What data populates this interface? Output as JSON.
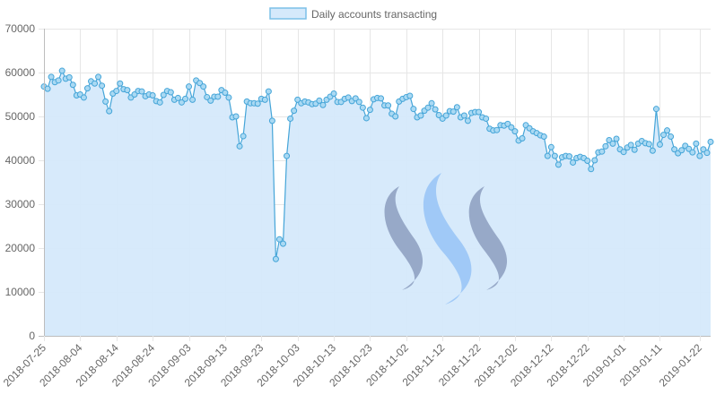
{
  "chart_data": {
    "type": "line",
    "x_start": "2018-07-25",
    "series": [
      {
        "name": "Daily accounts transacting",
        "values": [
          56800,
          56300,
          59000,
          57800,
          58200,
          60400,
          58600,
          58900,
          57200,
          54800,
          55000,
          54300,
          56400,
          58000,
          57500,
          59000,
          57000,
          53400,
          51200,
          55200,
          55800,
          57500,
          56200,
          56000,
          54300,
          55000,
          55800,
          55700,
          54600,
          55000,
          54800,
          53500,
          53200,
          54900,
          55800,
          55500,
          53800,
          54200,
          53200,
          54000,
          56800,
          53800,
          58200,
          57600,
          56800,
          54400,
          53600,
          54500,
          54500,
          56000,
          55400,
          54300,
          49800,
          50000,
          43200,
          45500,
          53400,
          53000,
          53000,
          52900,
          54000,
          53800,
          55700,
          49000,
          17500,
          22000,
          21000,
          41000,
          49500,
          51300,
          53800,
          53000,
          53400,
          53200,
          52800,
          52900,
          53600,
          52600,
          53800,
          54500,
          55200,
          53300,
          53300,
          54000,
          54300,
          53500,
          54100,
          53300,
          52000,
          49600,
          51500,
          53900,
          54200,
          54100,
          52500,
          52500,
          50600,
          50000,
          53400,
          54000,
          54400,
          54700,
          51700,
          49800,
          50200,
          51300,
          52000,
          53000,
          51600,
          50300,
          49500,
          50200,
          51200,
          51100,
          52100,
          49800,
          50200,
          49000,
          50800,
          51000,
          51000,
          49800,
          49500,
          47200,
          46800,
          46900,
          48000,
          47900,
          48300,
          47500,
          46600,
          44500,
          45000,
          48000,
          47300,
          46600,
          46200,
          45700,
          45400,
          41000,
          43000,
          41000,
          39000,
          40700,
          41000,
          40900,
          39500,
          40500,
          40800,
          40500,
          39900,
          38000,
          40000,
          41800,
          42000,
          43200,
          44600,
          43800,
          44900,
          42500,
          41900,
          42900,
          43500,
          42400,
          43800,
          44400,
          43900,
          43700,
          42200,
          51700,
          43600,
          45800,
          46800,
          45400,
          42500,
          41600,
          42300,
          43300,
          42600,
          41800,
          43800,
          41000,
          42500,
          41700,
          44200
        ]
      }
    ],
    "x_tick_labels": [
      "2018-07-25",
      "2018-08-04",
      "2018-08-14",
      "2018-08-24",
      "2018-09-03",
      "2018-09-13",
      "2018-09-23",
      "2018-10-03",
      "2018-10-13",
      "2018-10-23",
      "2018-11-02",
      "2018-11-12",
      "2018-11-22",
      "2018-12-02",
      "2018-12-12",
      "2018-12-22",
      "2019-01-01",
      "2019-01-11",
      "2019-01-22"
    ],
    "y_ticks": [
      0,
      10000,
      20000,
      30000,
      40000,
      50000,
      60000,
      70000
    ],
    "ylim": [
      0,
      70000
    ],
    "legend_position": "top-center",
    "grid": true,
    "colors": {
      "line": "#45a5d8",
      "fill": "#d5e9fb",
      "point_fill": "#aad9f3",
      "legend_fill": "#d5e9fb",
      "legend_border": "#7cc0e8",
      "grid": "#e6e6e6",
      "watermark_dark": "#8294b8",
      "watermark_light": "#8ebff6"
    },
    "watermark": "steem-logo"
  }
}
